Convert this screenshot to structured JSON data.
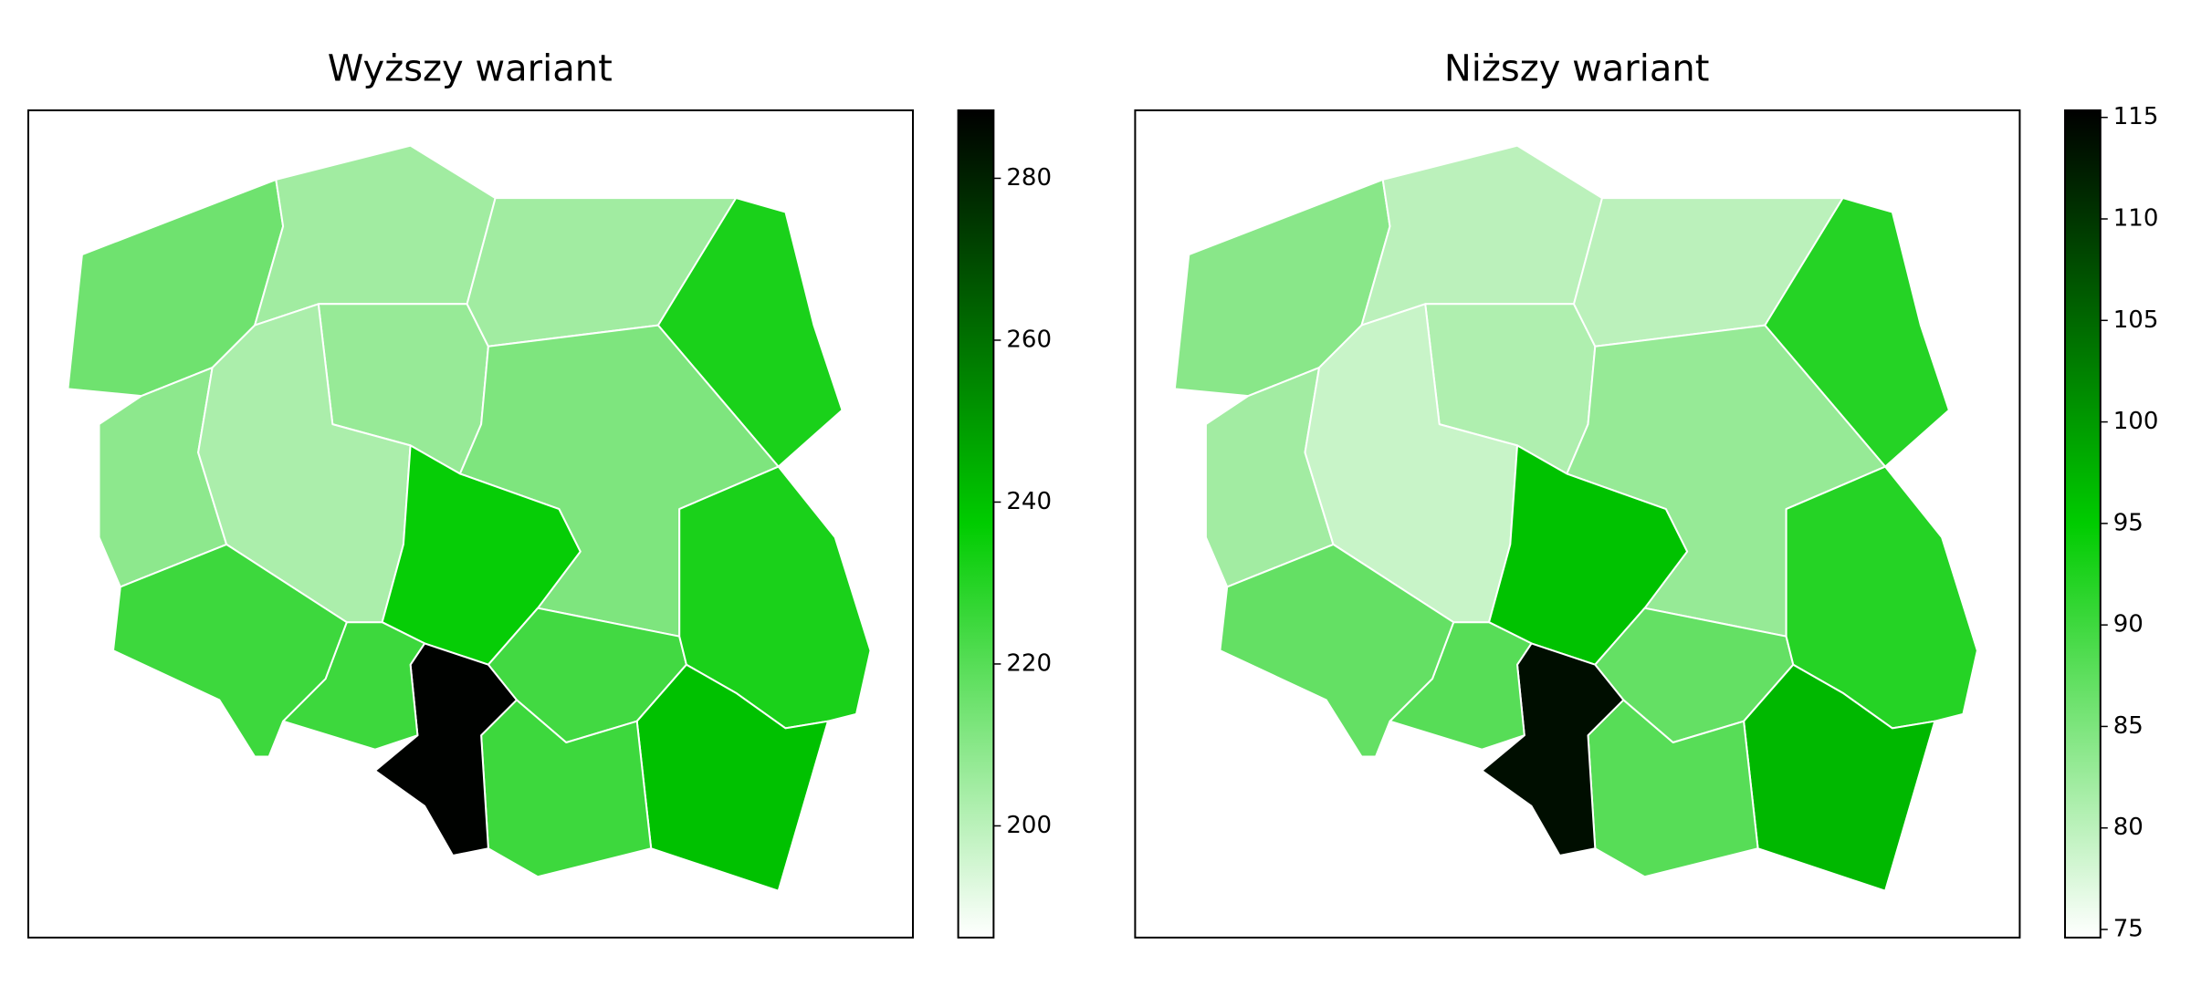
{
  "colormap": [
    "#ffffff",
    "#00cc00",
    "#000000"
  ],
  "maps": [
    {
      "title": "Wyższy wariant",
      "values": [
        215,
        205,
        207,
        205,
        232,
        209,
        203,
        212,
        236,
        224,
        232,
        240,
        225,
        288,
        225,
        225
      ],
      "colorbar": {
        "lim": [
          186.2,
          288.4
        ],
        "ticks": [
          200,
          220,
          240,
          260,
          280
        ]
      }
    },
    {
      "title": "Niższy wariant",
      "values": [
        84,
        80,
        81,
        80,
        92,
        82,
        79,
        83,
        96,
        87,
        92,
        97,
        88,
        114,
        88,
        87
      ],
      "colorbar": {
        "lim": [
          74.6,
          115.35
        ],
        "ticks": [
          75,
          80,
          85,
          90,
          95,
          100,
          105,
          110,
          115
        ]
      }
    }
  ]
}
